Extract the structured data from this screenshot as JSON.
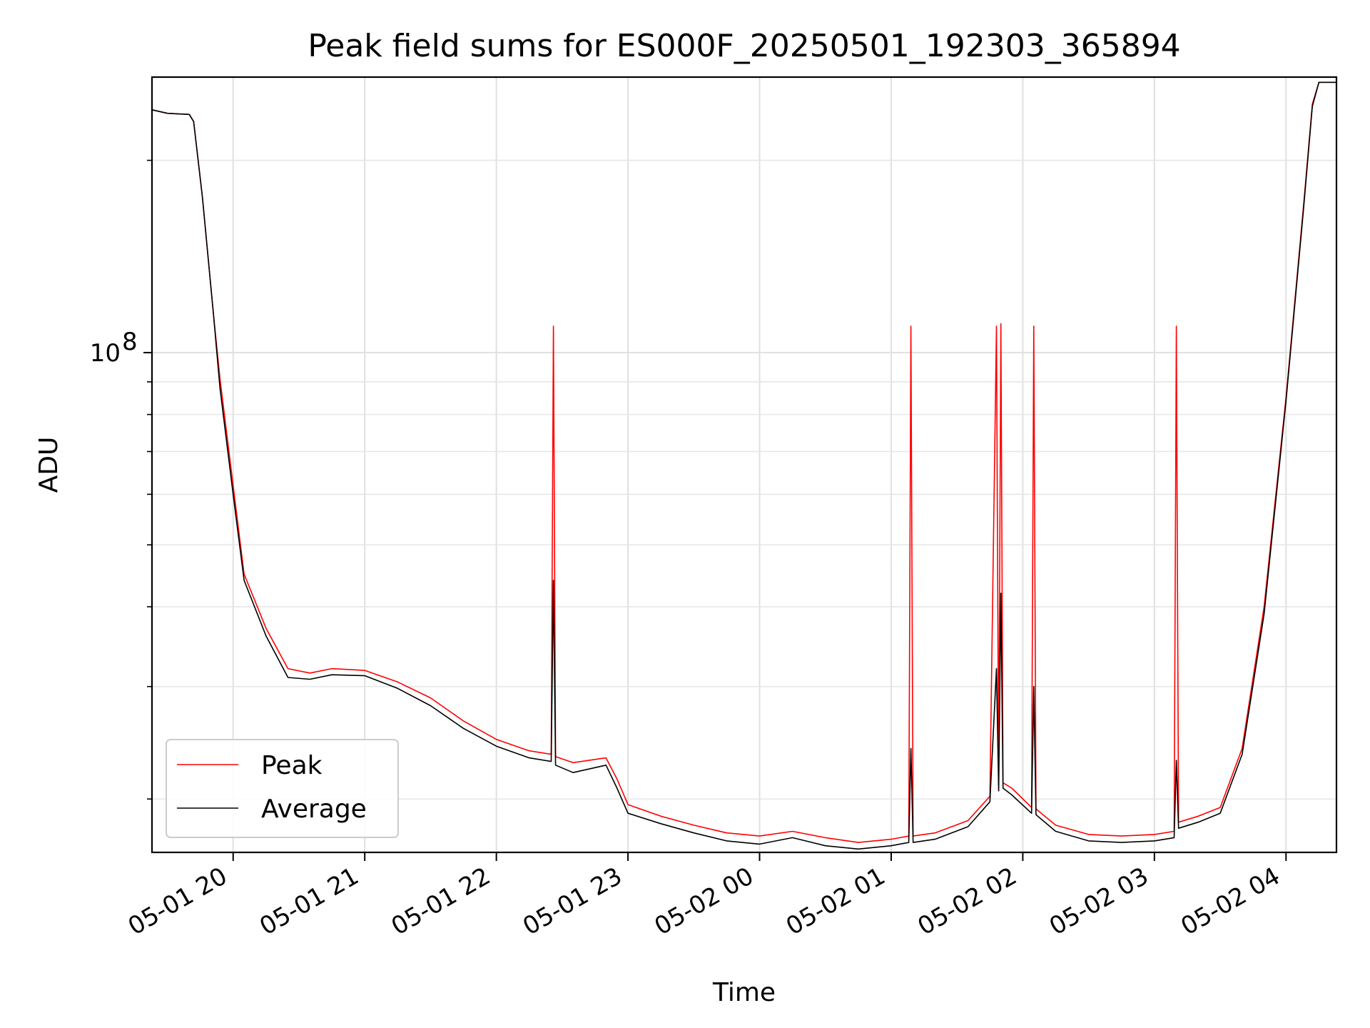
{
  "chart_data": {
    "type": "line",
    "title": "Peak field sums for ES000F_20250501_192303_365894",
    "xlabel": "Time",
    "ylabel": "ADU",
    "yscale": "log",
    "grid": true,
    "legend_position": "lower-left",
    "xlim": [
      "2025-05-01 19:23",
      "2025-05-02 04:23"
    ],
    "ylim": [
      16500000,
      270000000
    ],
    "xticks": [
      "05-01 20",
      "05-01 21",
      "05-01 22",
      "05-01 23",
      "05-02 00",
      "05-02 01",
      "05-02 02",
      "05-02 03",
      "05-02 04"
    ],
    "yticks": [
      {
        "value": 100000000,
        "base": "10",
        "exp": "8"
      }
    ],
    "series": [
      {
        "name": "Peak",
        "color": "#ff0000",
        "points": [
          [
            "2025-05-01 19:23",
            240000000
          ],
          [
            "2025-05-01 19:30",
            237000000
          ],
          [
            "2025-05-01 19:40",
            236000000
          ],
          [
            "2025-05-01 19:42",
            230000000
          ],
          [
            "2025-05-01 19:46",
            175000000
          ],
          [
            "2025-05-01 19:51",
            115000000
          ],
          [
            "2025-05-01 19:54",
            91000000
          ],
          [
            "2025-05-01 20:00",
            62000000
          ],
          [
            "2025-05-01 20:05",
            45000000
          ],
          [
            "2025-05-01 20:15",
            37000000
          ],
          [
            "2025-05-01 20:25",
            32000000
          ],
          [
            "2025-05-01 20:35",
            31500000
          ],
          [
            "2025-05-01 20:45",
            32000000
          ],
          [
            "2025-05-01 21:00",
            31800000
          ],
          [
            "2025-05-01 21:15",
            30500000
          ],
          [
            "2025-05-01 21:30",
            28800000
          ],
          [
            "2025-05-01 21:45",
            26500000
          ],
          [
            "2025-05-01 22:00",
            24800000
          ],
          [
            "2025-05-01 22:15",
            23800000
          ],
          [
            "2025-05-01 22:25",
            23500000
          ],
          [
            "2025-05-01 22:26",
            110000000
          ],
          [
            "2025-05-01 22:27",
            23300000
          ],
          [
            "2025-05-01 22:35",
            22800000
          ],
          [
            "2025-05-01 22:50",
            23200000
          ],
          [
            "2025-05-01 22:55",
            21500000
          ],
          [
            "2025-05-01 23:00",
            19600000
          ],
          [
            "2025-05-01 23:15",
            18800000
          ],
          [
            "2025-05-01 23:30",
            18200000
          ],
          [
            "2025-05-01 23:45",
            17700000
          ],
          [
            "2025-05-02 00:00",
            17500000
          ],
          [
            "2025-05-02 00:15",
            17800000
          ],
          [
            "2025-05-02 00:30",
            17400000
          ],
          [
            "2025-05-02 00:45",
            17100000
          ],
          [
            "2025-05-02 01:00",
            17300000
          ],
          [
            "2025-05-02 01:08",
            17500000
          ],
          [
            "2025-05-02 01:09",
            110000000
          ],
          [
            "2025-05-02 01:10",
            17500000
          ],
          [
            "2025-05-02 01:20",
            17700000
          ],
          [
            "2025-05-02 01:35",
            18500000
          ],
          [
            "2025-05-02 01:45",
            20200000
          ],
          [
            "2025-05-02 01:48",
            110000000
          ],
          [
            "2025-05-02 01:49",
            21000000
          ],
          [
            "2025-05-02 01:50",
            111000000
          ],
          [
            "2025-05-02 01:51",
            21200000
          ],
          [
            "2025-05-02 01:55",
            20800000
          ],
          [
            "2025-05-02 02:04",
            19400000
          ],
          [
            "2025-05-02 02:05",
            110000000
          ],
          [
            "2025-05-02 02:06",
            19300000
          ],
          [
            "2025-05-02 02:15",
            18200000
          ],
          [
            "2025-05-02 02:30",
            17600000
          ],
          [
            "2025-05-02 02:45",
            17500000
          ],
          [
            "2025-05-02 03:00",
            17600000
          ],
          [
            "2025-05-02 03:09",
            17800000
          ],
          [
            "2025-05-02 03:10",
            110000000
          ],
          [
            "2025-05-02 03:11",
            18400000
          ],
          [
            "2025-05-02 03:20",
            18800000
          ],
          [
            "2025-05-02 03:30",
            19400000
          ],
          [
            "2025-05-02 03:40",
            24000000
          ],
          [
            "2025-05-02 03:50",
            40000000
          ],
          [
            "2025-05-02 04:00",
            85000000
          ],
          [
            "2025-05-02 04:08",
            170000000
          ],
          [
            "2025-05-02 04:12",
            245000000
          ],
          [
            "2025-05-02 04:15",
            265000000
          ],
          [
            "2025-05-02 04:23",
            265000000
          ]
        ]
      },
      {
        "name": "Average",
        "color": "#000000",
        "points": [
          [
            "2025-05-01 19:23",
            240000000
          ],
          [
            "2025-05-01 19:30",
            237000000
          ],
          [
            "2025-05-01 19:40",
            236000000
          ],
          [
            "2025-05-01 19:42",
            230000000
          ],
          [
            "2025-05-01 19:46",
            175000000
          ],
          [
            "2025-05-01 19:51",
            115000000
          ],
          [
            "2025-05-01 19:54",
            88000000
          ],
          [
            "2025-05-01 20:00",
            60000000
          ],
          [
            "2025-05-01 20:05",
            44000000
          ],
          [
            "2025-05-01 20:15",
            36000000
          ],
          [
            "2025-05-01 20:25",
            31000000
          ],
          [
            "2025-05-01 20:35",
            30800000
          ],
          [
            "2025-05-01 20:45",
            31300000
          ],
          [
            "2025-05-01 21:00",
            31200000
          ],
          [
            "2025-05-01 21:15",
            29800000
          ],
          [
            "2025-05-01 21:30",
            28000000
          ],
          [
            "2025-05-01 21:45",
            25800000
          ],
          [
            "2025-05-01 22:00",
            24200000
          ],
          [
            "2025-05-01 22:15",
            23200000
          ],
          [
            "2025-05-01 22:25",
            22900000
          ],
          [
            "2025-05-01 22:26",
            44000000
          ],
          [
            "2025-05-01 22:27",
            22600000
          ],
          [
            "2025-05-01 22:35",
            22000000
          ],
          [
            "2025-05-01 22:50",
            22600000
          ],
          [
            "2025-05-01 22:55",
            20800000
          ],
          [
            "2025-05-01 23:00",
            19000000
          ],
          [
            "2025-05-01 23:15",
            18300000
          ],
          [
            "2025-05-01 23:30",
            17700000
          ],
          [
            "2025-05-01 23:45",
            17200000
          ],
          [
            "2025-05-02 00:00",
            17000000
          ],
          [
            "2025-05-02 00:15",
            17400000
          ],
          [
            "2025-05-02 00:30",
            16900000
          ],
          [
            "2025-05-02 00:45",
            16700000
          ],
          [
            "2025-05-02 01:00",
            16900000
          ],
          [
            "2025-05-02 01:08",
            17100000
          ],
          [
            "2025-05-02 01:09",
            24000000
          ],
          [
            "2025-05-02 01:10",
            17100000
          ],
          [
            "2025-05-02 01:20",
            17300000
          ],
          [
            "2025-05-02 01:35",
            18100000
          ],
          [
            "2025-05-02 01:45",
            19800000
          ],
          [
            "2025-05-02 01:48",
            32000000
          ],
          [
            "2025-05-02 01:49",
            20600000
          ],
          [
            "2025-05-02 01:50",
            42000000
          ],
          [
            "2025-05-02 01:51",
            20800000
          ],
          [
            "2025-05-02 01:55",
            20300000
          ],
          [
            "2025-05-02 02:04",
            19000000
          ],
          [
            "2025-05-02 02:05",
            30000000
          ],
          [
            "2025-05-02 02:06",
            18900000
          ],
          [
            "2025-05-02 02:15",
            17800000
          ],
          [
            "2025-05-02 02:30",
            17200000
          ],
          [
            "2025-05-02 02:45",
            17100000
          ],
          [
            "2025-05-02 03:00",
            17200000
          ],
          [
            "2025-05-02 03:09",
            17400000
          ],
          [
            "2025-05-02 03:10",
            23000000
          ],
          [
            "2025-05-02 03:11",
            18000000
          ],
          [
            "2025-05-02 03:20",
            18400000
          ],
          [
            "2025-05-02 03:30",
            19000000
          ],
          [
            "2025-05-02 03:40",
            23500000
          ],
          [
            "2025-05-02 03:50",
            39000000
          ],
          [
            "2025-05-02 04:00",
            84000000
          ],
          [
            "2025-05-02 04:08",
            168000000
          ],
          [
            "2025-05-02 04:12",
            243000000
          ],
          [
            "2025-05-02 04:15",
            265000000
          ],
          [
            "2025-05-02 04:23",
            265000000
          ]
        ]
      }
    ]
  }
}
